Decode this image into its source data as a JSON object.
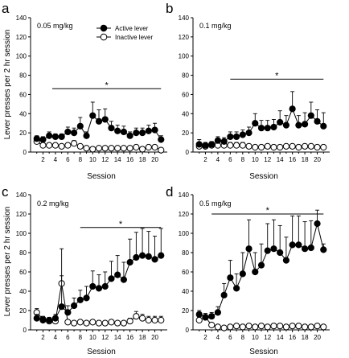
{
  "figure": {
    "ylabel": "Lever presses per 2 hr session",
    "xlabel": "Session",
    "legend": {
      "active": "Active lever",
      "inactive": "Inactive lever"
    },
    "significance_marker": "*"
  },
  "chart_data": [
    {
      "type": "line",
      "panel": "a",
      "dose": "0.05 mg/kg",
      "xlabel": "Session",
      "ylabel": "Lever presses per 2 hr session",
      "xlim": [
        0,
        22
      ],
      "ylim": [
        0,
        140
      ],
      "xticks": [
        2,
        4,
        6,
        8,
        10,
        12,
        14,
        16,
        18,
        20
      ],
      "yticks": [
        0,
        20,
        40,
        60,
        80,
        100,
        120,
        140
      ],
      "legend_position": "top-center",
      "significance": {
        "x_start": 3.5,
        "x_end": 21,
        "y": 66
      },
      "x": [
        1,
        2,
        3,
        4,
        5,
        6,
        7,
        8,
        9,
        10,
        11,
        12,
        13,
        14,
        15,
        16,
        17,
        18,
        19,
        20,
        21
      ],
      "series": [
        {
          "name": "Active lever",
          "values": [
            14,
            13,
            17,
            16,
            16,
            21,
            20,
            27,
            17,
            38,
            32,
            34,
            25,
            22,
            21,
            17,
            20,
            20,
            22,
            23,
            13
          ],
          "errors": [
            3,
            3,
            4,
            3,
            3,
            5,
            5,
            9,
            4,
            14,
            12,
            11,
            7,
            6,
            6,
            4,
            5,
            5,
            6,
            7,
            4
          ]
        },
        {
          "name": "Inactive lever",
          "values": [
            11,
            7,
            7,
            7,
            6,
            7,
            9,
            6,
            4,
            3,
            4,
            4,
            4,
            4,
            4,
            4,
            5,
            3,
            5,
            5,
            2
          ],
          "errors": [
            3,
            2,
            2,
            2,
            2,
            2,
            3,
            2,
            1,
            1,
            1,
            1,
            1,
            1,
            1,
            1,
            1,
            1,
            1,
            1,
            1
          ]
        }
      ]
    },
    {
      "type": "line",
      "panel": "b",
      "dose": "0.1 mg/kg",
      "xlabel": "Session",
      "xlim": [
        0,
        22
      ],
      "ylim": [
        0,
        140
      ],
      "xticks": [
        2,
        4,
        6,
        8,
        10,
        12,
        14,
        16,
        18,
        20
      ],
      "yticks": [
        0,
        20,
        40,
        60,
        80,
        100,
        120,
        140
      ],
      "significance": {
        "x_start": 6,
        "x_end": 21,
        "y": 76
      },
      "x": [
        1,
        2,
        3,
        4,
        5,
        6,
        7,
        8,
        9,
        10,
        11,
        12,
        13,
        14,
        15,
        16,
        17,
        18,
        19,
        20,
        21
      ],
      "series": [
        {
          "name": "Active lever",
          "values": [
            8,
            7,
            8,
            12,
            11,
            16,
            16,
            18,
            20,
            30,
            25,
            25,
            26,
            31,
            28,
            45,
            28,
            29,
            38,
            32,
            27
          ],
          "errors": [
            5,
            3,
            3,
            4,
            4,
            5,
            5,
            5,
            6,
            10,
            8,
            8,
            8,
            12,
            10,
            18,
            10,
            12,
            14,
            12,
            14
          ]
        },
        {
          "name": "Inactive lever",
          "values": [
            6,
            6,
            7,
            7,
            7,
            7,
            7,
            7,
            6,
            5,
            5,
            6,
            5,
            5,
            6,
            6,
            5,
            6,
            6,
            5,
            5
          ],
          "errors": [
            4,
            2,
            3,
            2,
            2,
            3,
            3,
            3,
            2,
            2,
            2,
            2,
            2,
            2,
            2,
            2,
            2,
            2,
            2,
            2,
            1
          ]
        }
      ]
    },
    {
      "type": "line",
      "panel": "c",
      "dose": "0.2 mg/kg",
      "xlabel": "Session",
      "ylabel": "Lever presses per 2 hr session",
      "xlim": [
        0,
        22
      ],
      "ylim": [
        0,
        140
      ],
      "xticks": [
        2,
        4,
        6,
        8,
        10,
        12,
        14,
        16,
        18,
        20
      ],
      "yticks": [
        0,
        20,
        40,
        60,
        80,
        100,
        120,
        140
      ],
      "significance": {
        "x_start": 8,
        "x_end": 21,
        "y": 106
      },
      "x": [
        1,
        2,
        3,
        4,
        5,
        6,
        7,
        8,
        9,
        10,
        11,
        12,
        13,
        14,
        15,
        16,
        17,
        18,
        19,
        20,
        21
      ],
      "series": [
        {
          "name": "Active lever",
          "values": [
            12,
            10,
            10,
            12,
            24,
            18,
            25,
            31,
            33,
            45,
            43,
            45,
            53,
            57,
            52,
            70,
            75,
            77,
            76,
            73,
            77
          ],
          "errors": [
            4,
            3,
            3,
            4,
            60,
            7,
            8,
            10,
            12,
            16,
            14,
            15,
            18,
            20,
            18,
            24,
            26,
            28,
            26,
            24,
            28
          ]
        },
        {
          "name": "Inactive lever",
          "values": [
            18,
            11,
            9,
            9,
            48,
            8,
            7,
            8,
            7,
            8,
            7,
            7,
            8,
            7,
            7,
            9,
            14,
            12,
            10,
            10,
            10
          ],
          "errors": [
            4,
            3,
            3,
            3,
            8,
            2,
            2,
            2,
            2,
            2,
            2,
            2,
            2,
            2,
            2,
            3,
            5,
            4,
            4,
            4,
            4
          ]
        }
      ]
    },
    {
      "type": "line",
      "panel": "d",
      "dose": "0.5 mg/kg",
      "xlabel": "Session",
      "xlim": [
        0,
        22
      ],
      "ylim": [
        0,
        140
      ],
      "xticks": [
        2,
        4,
        6,
        8,
        10,
        12,
        14,
        16,
        18,
        20
      ],
      "yticks": [
        0,
        20,
        40,
        60,
        80,
        100,
        120,
        140
      ],
      "significance": {
        "x_start": 3,
        "x_end": 21,
        "y": 120
      },
      "x": [
        1,
        2,
        3,
        4,
        5,
        6,
        7,
        8,
        9,
        10,
        11,
        12,
        13,
        14,
        15,
        16,
        17,
        18,
        19,
        20,
        21
      ],
      "series": [
        {
          "name": "Active lever",
          "values": [
            16,
            13,
            14,
            18,
            36,
            54,
            43,
            58,
            84,
            60,
            67,
            82,
            84,
            80,
            72,
            88,
            88,
            84,
            85,
            110,
            83
          ],
          "errors": [
            4,
            3,
            4,
            6,
            12,
            18,
            15,
            22,
            30,
            20,
            22,
            28,
            30,
            28,
            24,
            30,
            30,
            28,
            28,
            14,
            6
          ]
        },
        {
          "name": "Inactive lever",
          "values": [
            10,
            13,
            5,
            3,
            2,
            3,
            4,
            3,
            4,
            3,
            4,
            3,
            4,
            4,
            3,
            4,
            4,
            3,
            3,
            4,
            3
          ],
          "errors": [
            3,
            4,
            2,
            1,
            1,
            1,
            2,
            1,
            2,
            1,
            2,
            1,
            2,
            2,
            1,
            2,
            2,
            1,
            1,
            2,
            1
          ]
        }
      ]
    }
  ]
}
